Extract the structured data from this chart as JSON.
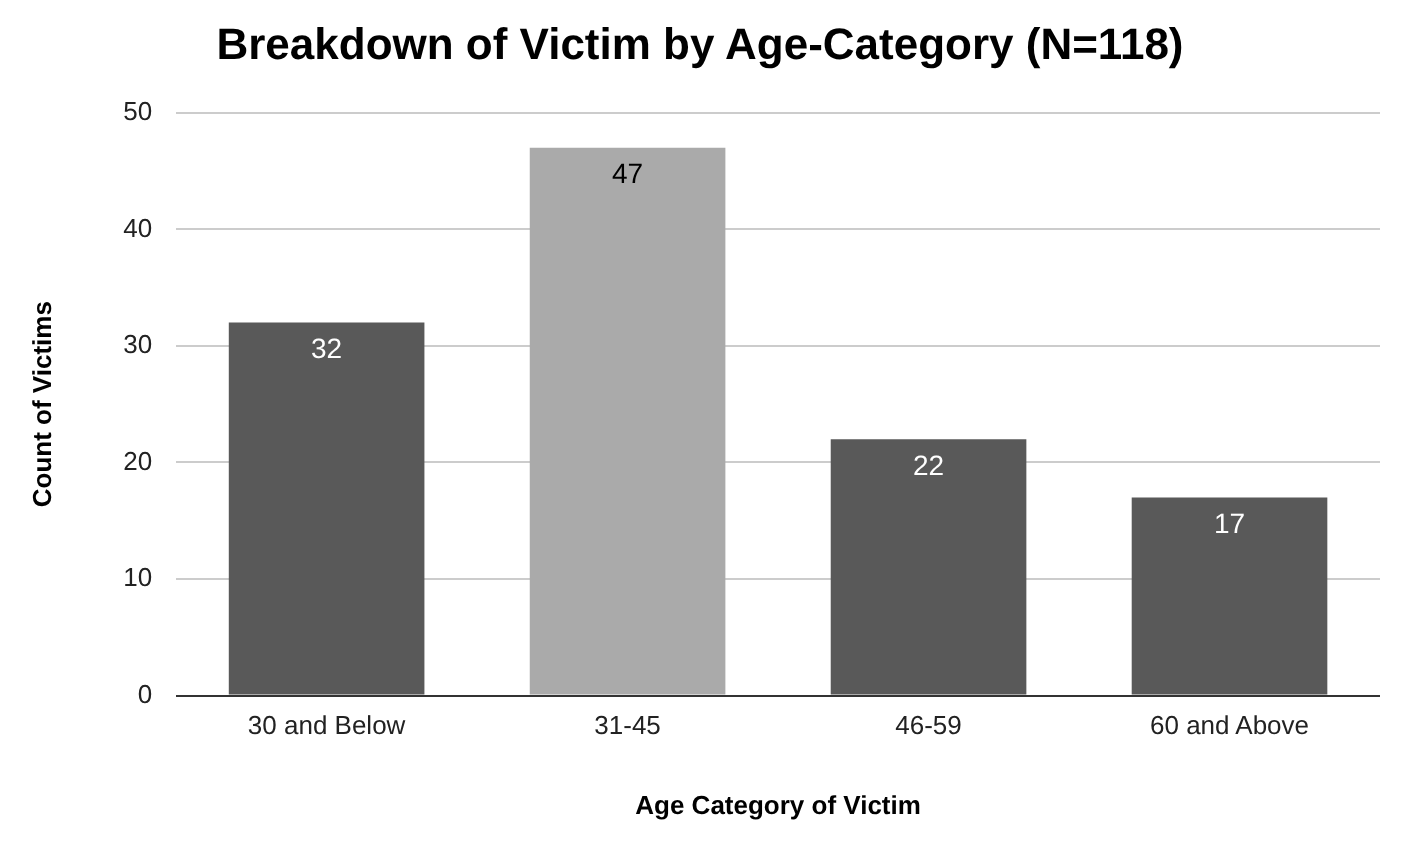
{
  "chart_data": {
    "type": "bar",
    "title": "Breakdown of Victim by Age-Category (N=118)",
    "xlabel": "Age Category of Victim",
    "ylabel": "Count of Victims",
    "categories": [
      "30 and Below",
      "31-45",
      "46-59",
      "60 and Above"
    ],
    "values": [
      32,
      47,
      22,
      17
    ],
    "colors": [
      "#595959",
      "#aaaaaa",
      "#595959",
      "#595959"
    ],
    "ylim": [
      0,
      50
    ],
    "yticks": [
      0,
      10,
      20,
      30,
      40,
      50
    ],
    "grid": "y",
    "data_labels": true,
    "legend": false
  }
}
